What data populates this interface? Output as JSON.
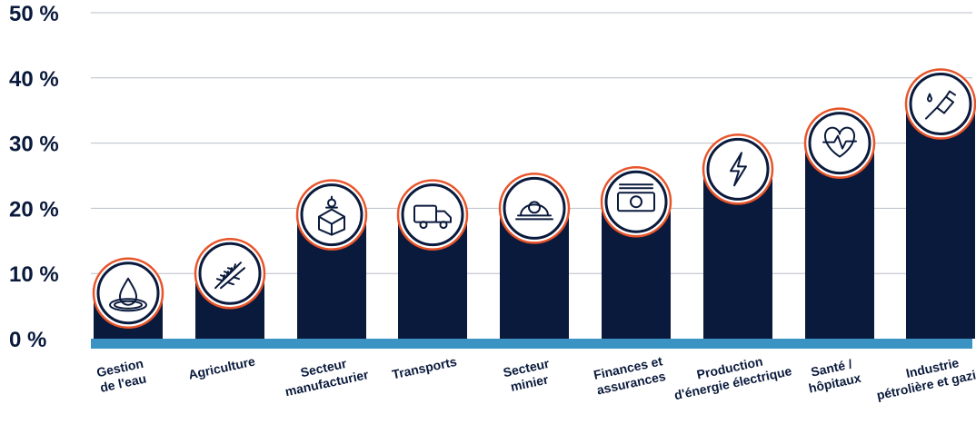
{
  "chart_data": {
    "type": "bar",
    "categories": [
      [
        "Gestion",
        "de l'eau"
      ],
      [
        "Agriculture"
      ],
      [
        "Secteur",
        "manufacturier"
      ],
      [
        "Transports"
      ],
      [
        "Secteur",
        "minier"
      ],
      [
        "Finances et",
        "assurances"
      ],
      [
        "Production",
        "d'énergie électrique"
      ],
      [
        "Santé /",
        "hôpitaux"
      ],
      [
        "Industrie",
        "pétrolière et gazière"
      ]
    ],
    "values": [
      7,
      10,
      19,
      19,
      20,
      21,
      26,
      30,
      36
    ],
    "icons": [
      "water-drop-icon",
      "wheat-icon",
      "factory-box-icon",
      "truck-icon",
      "mining-helmet-icon",
      "banknote-icon",
      "lightning-bolt-icon",
      "heart-pulse-icon",
      "fuel-nozzle-icon"
    ],
    "yticks": [
      "0 %",
      "10 %",
      "20 %",
      "30 %",
      "40 %",
      "50 %"
    ],
    "ylim": [
      0,
      50
    ],
    "grid": true,
    "colors": {
      "bar": "#0a1a3c",
      "baseline": "#3b93c3",
      "ring": "#e8542a",
      "grid": "#b9bec8",
      "text": "#0a1a3c"
    }
  }
}
